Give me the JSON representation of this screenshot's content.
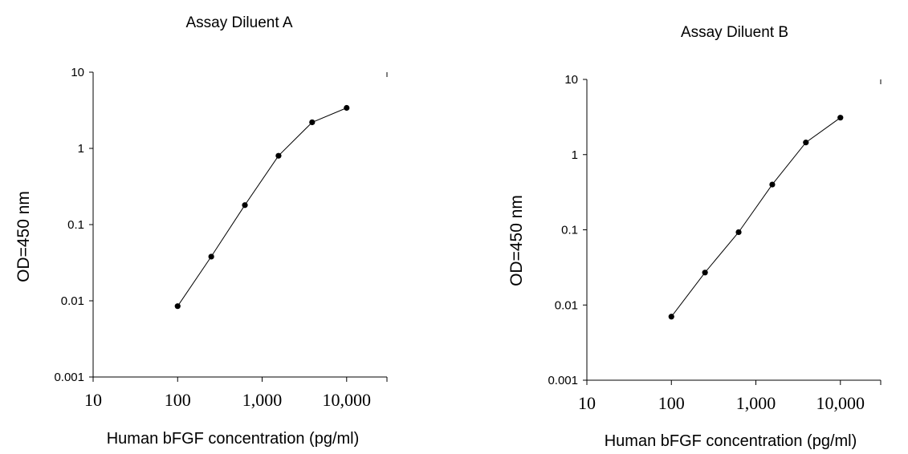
{
  "chart_data": [
    {
      "type": "line",
      "title": "Assay Diluent A",
      "xlabel": "Human bFGF concentration (pg/ml)",
      "ylabel": "OD=450 nm",
      "xscale": "log",
      "yscale": "log",
      "xlim": [
        10,
        30000
      ],
      "ylim": [
        0.001,
        10
      ],
      "x_ticks": [
        {
          "value": 10,
          "label": "10"
        },
        {
          "value": 100,
          "label": "100"
        },
        {
          "value": 1000,
          "label": "1,000"
        },
        {
          "value": 10000,
          "label": "10,000"
        }
      ],
      "y_ticks": [
        {
          "value": 0.001,
          "label": "0.001"
        },
        {
          "value": 0.01,
          "label": "0.01"
        },
        {
          "value": 0.1,
          "label": "0.1"
        },
        {
          "value": 1,
          "label": "1"
        },
        {
          "value": 10,
          "label": "10"
        }
      ],
      "grid": false,
      "marker": "filled-circle",
      "series": [
        {
          "x": [
            100,
            250,
            625,
            1563,
            3906,
            10000
          ],
          "y": [
            0.0085,
            0.038,
            0.18,
            0.8,
            2.2,
            3.4
          ]
        }
      ]
    },
    {
      "type": "line",
      "title": "Assay Diluent B",
      "xlabel": "Human bFGF concentration (pg/ml)",
      "ylabel": "OD=450 nm",
      "xscale": "log",
      "yscale": "log",
      "xlim": [
        10,
        30000
      ],
      "ylim": [
        0.001,
        10
      ],
      "x_ticks": [
        {
          "value": 10,
          "label": "10"
        },
        {
          "value": 100,
          "label": "100"
        },
        {
          "value": 1000,
          "label": "1,000"
        },
        {
          "value": 10000,
          "label": "10,000"
        }
      ],
      "y_ticks": [
        {
          "value": 0.001,
          "label": "0.001"
        },
        {
          "value": 0.01,
          "label": "0.01"
        },
        {
          "value": 0.1,
          "label": "0.1"
        },
        {
          "value": 1,
          "label": "1"
        },
        {
          "value": 10,
          "label": "10"
        }
      ],
      "grid": false,
      "marker": "filled-circle",
      "series": [
        {
          "x": [
            100,
            250,
            625,
            1563,
            3906,
            10000
          ],
          "y": [
            0.007,
            0.027,
            0.093,
            0.4,
            1.45,
            3.1
          ]
        }
      ]
    }
  ]
}
